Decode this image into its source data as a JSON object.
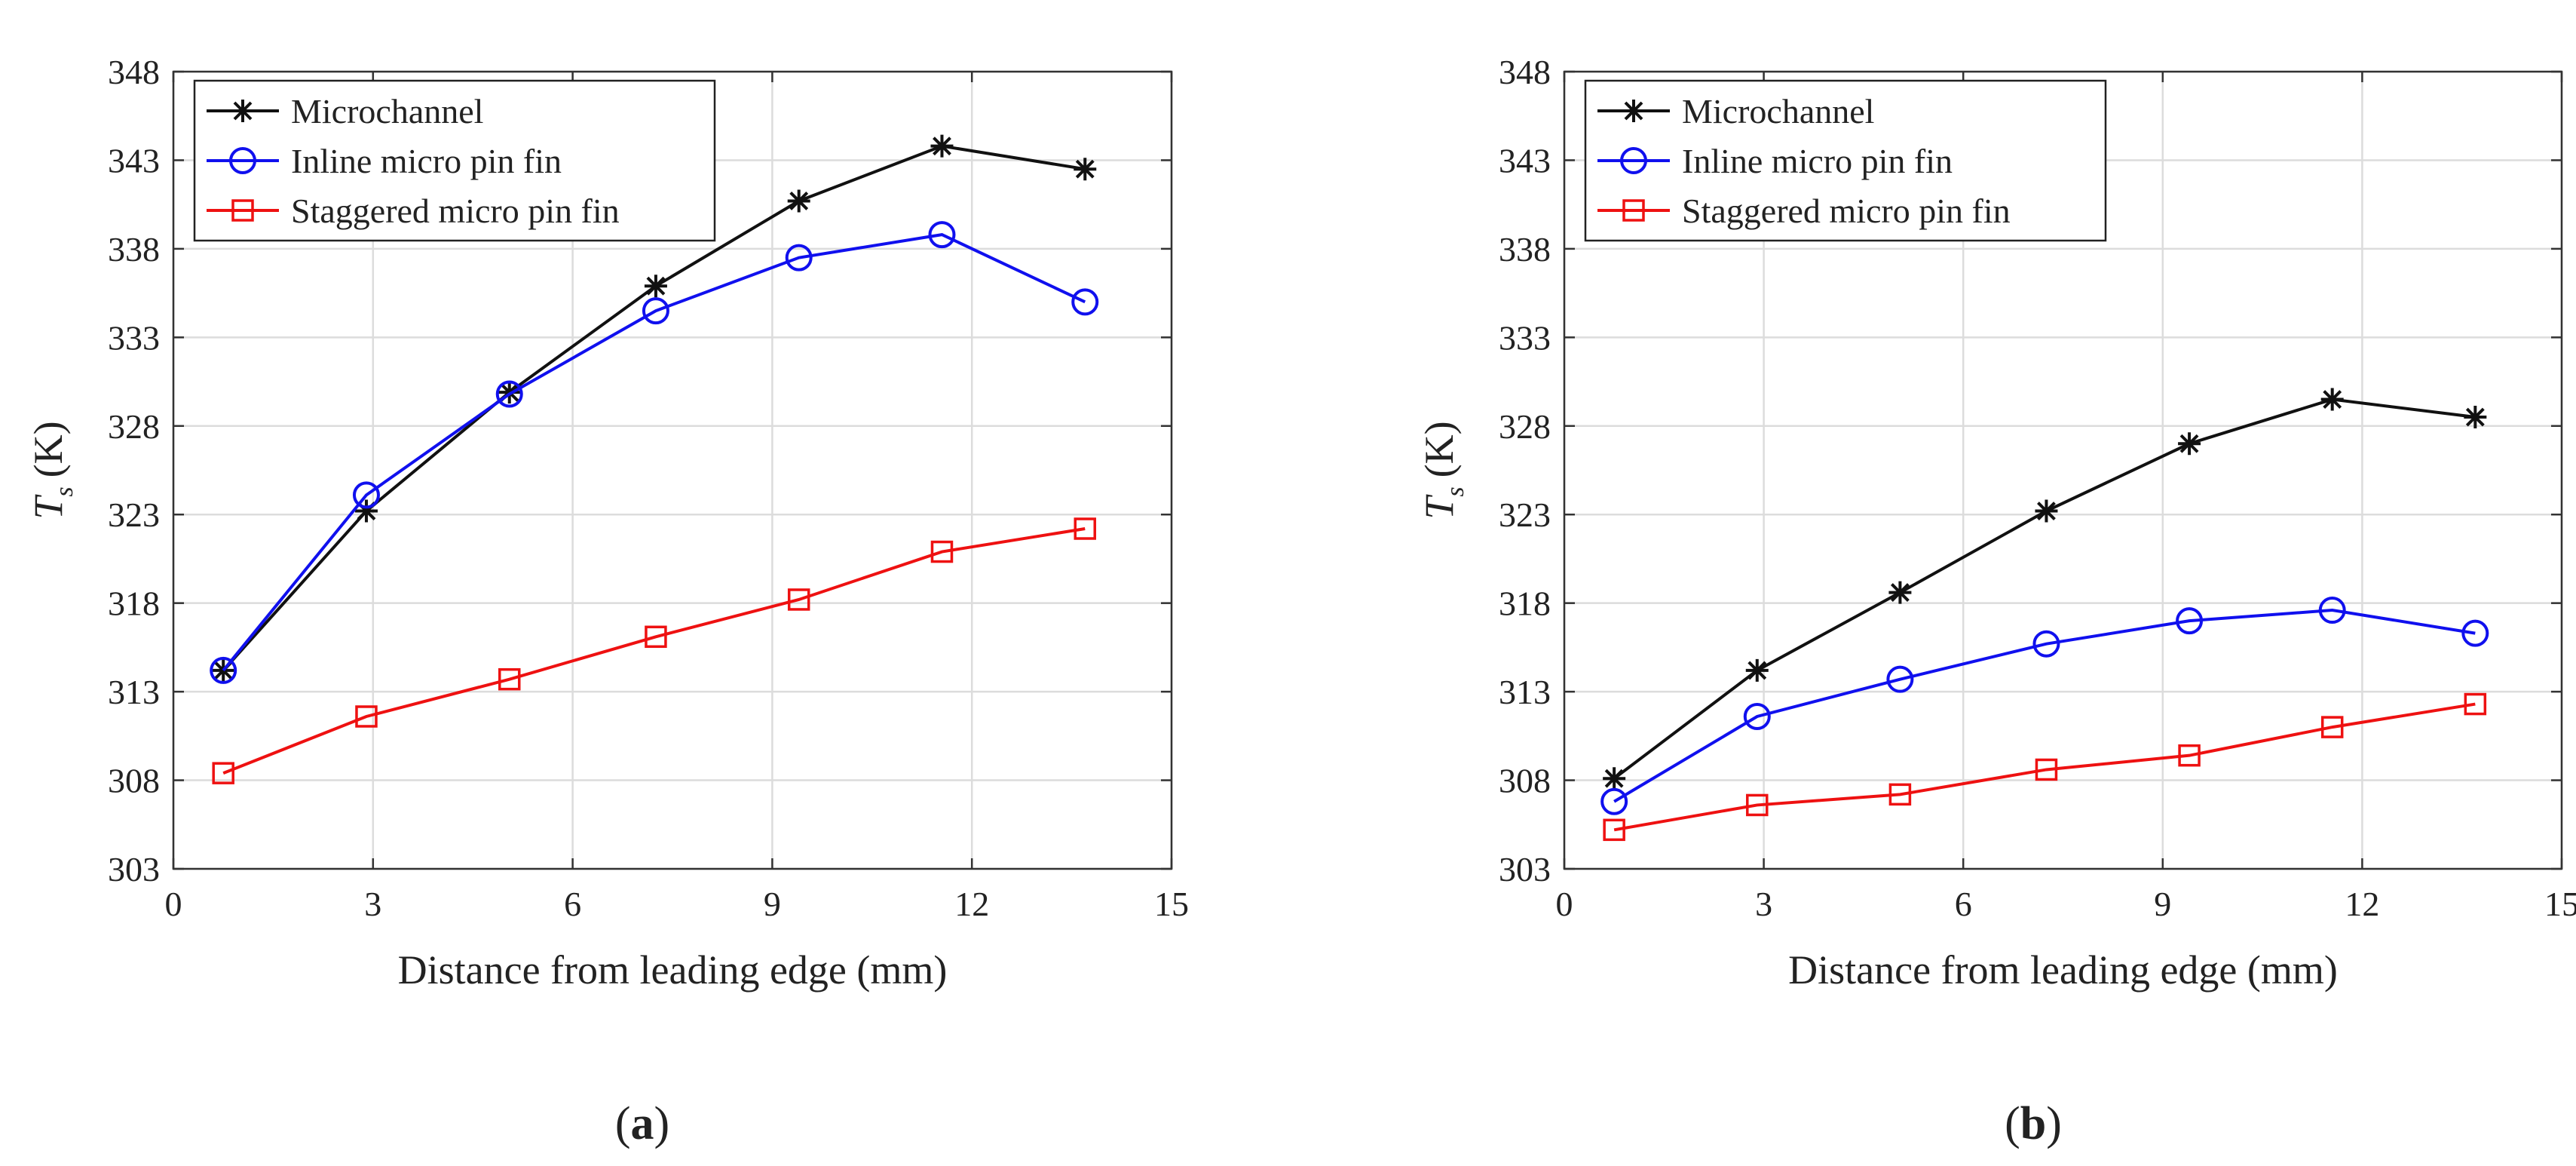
{
  "figure": {
    "panels": [
      {
        "label_open": "(",
        "label_letter": "a",
        "label_close": ")"
      },
      {
        "label_open": "(",
        "label_letter": "b",
        "label_close": ")"
      }
    ]
  },
  "chart_data": [
    {
      "type": "line",
      "panel": "a",
      "title": "",
      "xlabel": "Distance from leading edge (mm)",
      "ylabel_main": "T",
      "ylabel_sub": "s",
      "ylabel_unit": "(K)",
      "xlim": [
        0,
        15
      ],
      "ylim": [
        303,
        348
      ],
      "xticks": [
        0,
        3,
        6,
        9,
        12,
        15
      ],
      "yticks": [
        303,
        308,
        313,
        318,
        323,
        328,
        333,
        338,
        343,
        348
      ],
      "grid": true,
      "legend_position": "top-left",
      "x": [
        0.75,
        2.9,
        5.05,
        7.25,
        9.4,
        11.55,
        13.7
      ],
      "series": [
        {
          "name": "Microchannel",
          "marker": "star",
          "color": "#111111",
          "values": [
            314.2,
            323.2,
            329.9,
            335.9,
            340.7,
            343.8,
            342.5
          ]
        },
        {
          "name": "Inline micro pin fin",
          "marker": "circle",
          "color": "#1010ee",
          "values": [
            314.2,
            324.1,
            329.8,
            334.5,
            337.5,
            338.8,
            335.0
          ]
        },
        {
          "name": "Staggered micro pin fin",
          "marker": "square",
          "color": "#ee1111",
          "values": [
            308.4,
            311.6,
            313.7,
            316.1,
            318.2,
            320.9,
            322.2
          ]
        }
      ]
    },
    {
      "type": "line",
      "panel": "b",
      "title": "",
      "xlabel": "Distance from leading edge (mm)",
      "ylabel_main": "T",
      "ylabel_sub": "s",
      "ylabel_unit": "(K)",
      "xlim": [
        0,
        15
      ],
      "ylim": [
        303,
        348
      ],
      "xticks": [
        0,
        3,
        6,
        9,
        12,
        15
      ],
      "yticks": [
        303,
        308,
        313,
        318,
        323,
        328,
        333,
        338,
        343,
        348
      ],
      "grid": true,
      "legend_position": "top-left",
      "x": [
        0.75,
        2.9,
        5.05,
        7.25,
        9.4,
        11.55,
        13.7
      ],
      "series": [
        {
          "name": "Microchannel",
          "marker": "star",
          "color": "#111111",
          "values": [
            308.1,
            314.2,
            318.6,
            323.2,
            327.0,
            329.5,
            328.5
          ]
        },
        {
          "name": "Inline micro pin fin",
          "marker": "circle",
          "color": "#1010ee",
          "values": [
            306.8,
            311.6,
            313.7,
            315.7,
            317.0,
            317.6,
            316.3
          ]
        },
        {
          "name": "Staggered micro pin fin",
          "marker": "square",
          "color": "#ee1111",
          "values": [
            305.2,
            306.6,
            307.2,
            308.6,
            309.4,
            311.0,
            312.3
          ]
        }
      ]
    }
  ]
}
